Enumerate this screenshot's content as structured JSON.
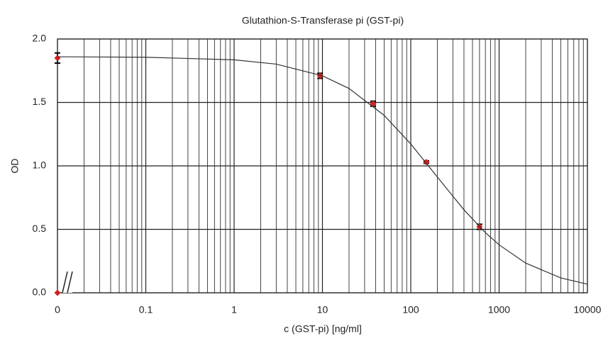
{
  "chart_data": {
    "type": "line",
    "title": "Glutathion-S-Transferase pi (GST-pi)",
    "x_label": "c (GST-pi) [ng/ml]",
    "y_label": "OD",
    "x_scale": "log",
    "axis_break": true,
    "xlim": [
      0,
      10000
    ],
    "xticks": [
      0,
      0.1,
      1,
      10,
      100,
      1000,
      10000
    ],
    "ylim": [
      0,
      2
    ],
    "yticks": [
      {
        "value": 0,
        "label": "0.0"
      },
      0.5,
      {
        "value": 1,
        "label": "1.0"
      },
      1.5,
      {
        "value": 2,
        "label": "2.0"
      }
    ],
    "grid": true,
    "series": [
      {
        "kind": "points",
        "color": "#d62020",
        "error_color": "#000000",
        "x": [
          0,
          0,
          9.4,
          37.5,
          150,
          600
        ],
        "values": [
          0,
          1.85,
          1.71,
          1.49,
          1.03,
          0.52
        ],
        "errors": [
          0,
          0.04,
          0.02,
          0.02,
          0.01,
          0.02
        ]
      },
      {
        "kind": "fit",
        "color": "#333333",
        "x": [
          0,
          0.1,
          1,
          3,
          10,
          20,
          50,
          100,
          200,
          400,
          700,
          1000,
          2000,
          5000,
          10000
        ],
        "values": [
          1.86,
          1.856,
          1.836,
          1.802,
          1.71,
          1.61,
          1.398,
          1.173,
          0.912,
          0.654,
          0.474,
          0.378,
          0.234,
          0.117,
          0.068
        ]
      }
    ]
  }
}
